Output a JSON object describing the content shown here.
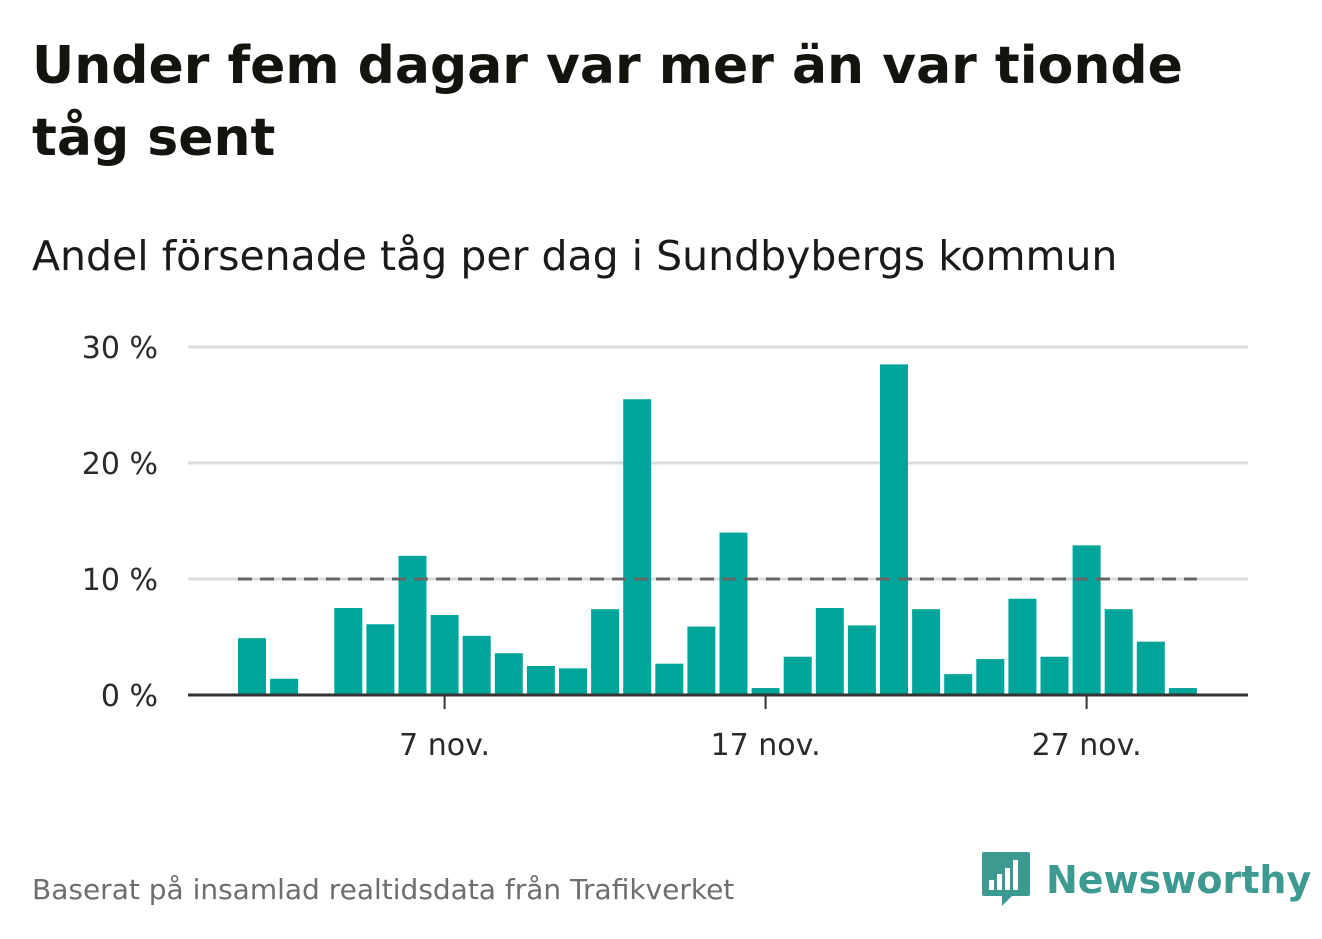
{
  "header": {
    "title": "Under fem dagar var mer än var tionde tåg sent",
    "subtitle": "Andel försenade tåg per dag i Sundbybergs kommun"
  },
  "footer": {
    "source": "Baserat på insamlad realtidsdata från Trafikverket",
    "brand": "Newsworthy"
  },
  "colors": {
    "bar": "#00a599",
    "grid": "#dcdcdc",
    "axis": "#333333",
    "reference": "#666666",
    "brand": "#3d9a90"
  },
  "icons": {
    "logo": "newsworthy-bars-logo-icon"
  },
  "chart_data": {
    "type": "bar",
    "title": "Andel försenade tåg per dag i Sundbybergs kommun",
    "xlabel": "",
    "ylabel": "",
    "ylim": [
      0,
      30
    ],
    "yticks": [
      {
        "value": 0,
        "label": "0 %"
      },
      {
        "value": 10,
        "label": "10 %"
      },
      {
        "value": 20,
        "label": "20 %"
      },
      {
        "value": 30,
        "label": "30 %"
      }
    ],
    "xticks": [
      {
        "day": 7,
        "label": "7 nov."
      },
      {
        "day": 17,
        "label": "17 nov."
      },
      {
        "day": 27,
        "label": "27 nov."
      }
    ],
    "reference_line": 10,
    "days": [
      1,
      2,
      3,
      4,
      5,
      6,
      7,
      8,
      9,
      10,
      11,
      12,
      13,
      14,
      15,
      16,
      17,
      18,
      19,
      20,
      21,
      22,
      23,
      24,
      25,
      26,
      27,
      28,
      29,
      30
    ],
    "values": [
      4.9,
      1.4,
      null,
      7.5,
      6.1,
      12.0,
      6.9,
      5.1,
      3.6,
      2.5,
      2.3,
      7.4,
      25.5,
      2.7,
      5.9,
      14.0,
      0.6,
      3.3,
      7.5,
      6.0,
      28.5,
      7.4,
      1.8,
      3.1,
      8.3,
      3.3,
      12.9,
      7.4,
      4.6,
      0.6
    ]
  }
}
